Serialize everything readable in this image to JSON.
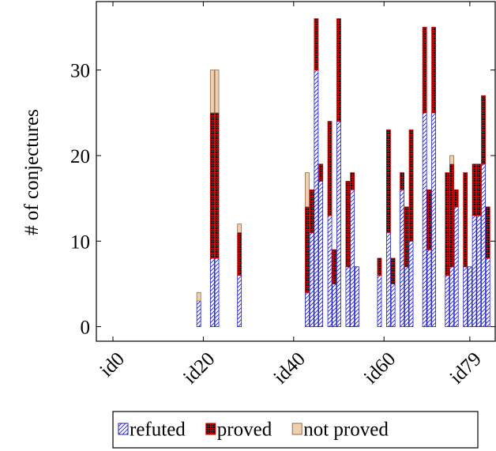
{
  "chart_data": {
    "type": "stacked_bar",
    "y_label": "# of conjectures",
    "categories": [
      "id0",
      null,
      null,
      null,
      null,
      null,
      null,
      null,
      null,
      null,
      null,
      null,
      null,
      null,
      null,
      null,
      null,
      null,
      null,
      null,
      "id20",
      null,
      null,
      null,
      null,
      null,
      null,
      null,
      null,
      null,
      null,
      null,
      null,
      null,
      null,
      null,
      null,
      null,
      null,
      null,
      "id40",
      null,
      null,
      null,
      null,
      null,
      null,
      null,
      null,
      null,
      null,
      null,
      null,
      null,
      null,
      null,
      null,
      null,
      null,
      null,
      "id60",
      null,
      null,
      null,
      null,
      null,
      null,
      null,
      null,
      null,
      null,
      null,
      null,
      null,
      null,
      null,
      null,
      null,
      null,
      "id79",
      null,
      null,
      null,
      null
    ],
    "series": [
      {
        "name": "refuted",
        "color": "#1f1fd6",
        "values": [
          0,
          0,
          0,
          0,
          0,
          0,
          0,
          0,
          0,
          0,
          0,
          0,
          0,
          0,
          0,
          0,
          0,
          0,
          0,
          3,
          0,
          0,
          8,
          8,
          0,
          0,
          0,
          0,
          6,
          0,
          0,
          0,
          0,
          0,
          0,
          0,
          0,
          0,
          0,
          0,
          0,
          0,
          0,
          4,
          11,
          30,
          17,
          0,
          13,
          5,
          24,
          0,
          7,
          16,
          7,
          0,
          0,
          0,
          0,
          6,
          0,
          11,
          5,
          0,
          16,
          7,
          10,
          0,
          0,
          25,
          9,
          25,
          0,
          0,
          6,
          7,
          14,
          0,
          7,
          7,
          13,
          13,
          19,
          8
        ]
      },
      {
        "name": "proved",
        "color": "#c80000",
        "values": [
          0,
          0,
          0,
          0,
          0,
          0,
          0,
          0,
          0,
          0,
          0,
          0,
          0,
          0,
          0,
          0,
          0,
          0,
          0,
          0,
          0,
          0,
          17,
          17,
          0,
          0,
          0,
          0,
          5,
          0,
          0,
          0,
          0,
          0,
          0,
          0,
          0,
          0,
          0,
          0,
          0,
          0,
          0,
          10,
          5,
          6,
          2,
          0,
          11,
          4,
          12,
          0,
          10,
          2,
          0,
          0,
          0,
          0,
          0,
          2,
          0,
          12,
          3,
          0,
          2,
          7,
          13,
          0,
          0,
          10,
          7,
          10,
          0,
          0,
          12,
          12,
          2,
          0,
          11,
          0,
          6,
          6,
          8,
          6
        ]
      },
      {
        "name": "not proved",
        "color": "#ecd0b4",
        "values": [
          0,
          0,
          0,
          0,
          0,
          0,
          0,
          0,
          0,
          0,
          0,
          0,
          0,
          0,
          0,
          0,
          0,
          0,
          0,
          1,
          0,
          0,
          5,
          5,
          0,
          0,
          0,
          0,
          1,
          0,
          0,
          0,
          0,
          0,
          0,
          0,
          0,
          0,
          0,
          0,
          0,
          0,
          0,
          4,
          0,
          0,
          0,
          0,
          0,
          0,
          0,
          0,
          0,
          0,
          0,
          0,
          0,
          0,
          0,
          0,
          0,
          0,
          0,
          0,
          0,
          0,
          0,
          0,
          0,
          0,
          0,
          0,
          0,
          0,
          0,
          1,
          0,
          0,
          0,
          0,
          0,
          0,
          0,
          0
        ]
      }
    ],
    "ylim": [
      -1.7,
      38
    ],
    "yticks": [
      0,
      10,
      20,
      30
    ],
    "legend": "below"
  }
}
